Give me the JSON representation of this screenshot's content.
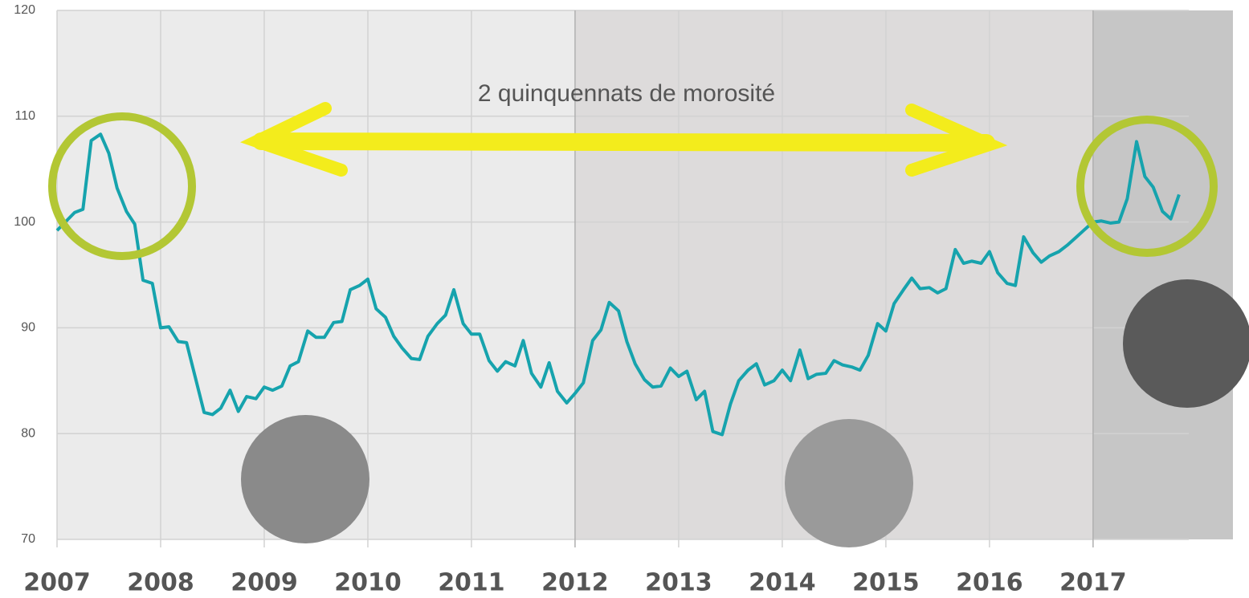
{
  "chart_data": {
    "type": "line",
    "annotation": "2 quinquennats de morosité",
    "x": [
      2007.0,
      2007.17,
      2007.25,
      2007.33,
      2007.42,
      2007.5,
      2007.58,
      2007.67,
      2007.75,
      2007.83,
      2007.92,
      2008.0,
      2008.08,
      2008.17,
      2008.25,
      2008.33,
      2008.42,
      2008.5,
      2008.58,
      2008.67,
      2008.75,
      2008.83,
      2008.92,
      2009.0,
      2009.08,
      2009.17,
      2009.25,
      2009.33,
      2009.42,
      2009.5,
      2009.58,
      2009.67,
      2009.75,
      2009.83,
      2009.92,
      2010.0,
      2010.08,
      2010.17,
      2010.25,
      2010.33,
      2010.42,
      2010.5,
      2010.58,
      2010.67,
      2010.75,
      2010.83,
      2010.92,
      2011.0,
      2011.08,
      2011.17,
      2011.25,
      2011.33,
      2011.42,
      2011.5,
      2011.58,
      2011.67,
      2011.75,
      2011.83,
      2011.92,
      2012.0,
      2012.08,
      2012.17,
      2012.25,
      2012.33,
      2012.42,
      2012.5,
      2012.58,
      2012.67,
      2012.75,
      2012.83,
      2012.92,
      2013.0,
      2013.08,
      2013.17,
      2013.25,
      2013.33,
      2013.42,
      2013.5,
      2013.58,
      2013.67,
      2013.75,
      2013.83,
      2013.92,
      2014.0,
      2014.08,
      2014.17,
      2014.25,
      2014.33,
      2014.42,
      2014.5,
      2014.58,
      2014.67,
      2014.75,
      2014.83,
      2014.92,
      2015.0,
      2015.08,
      2015.17,
      2015.25,
      2015.33,
      2015.42,
      2015.5,
      2015.58,
      2015.67,
      2015.75,
      2015.83,
      2015.92,
      2016.0,
      2016.08,
      2016.17,
      2016.25,
      2016.33,
      2016.42,
      2016.5,
      2016.58,
      2016.67,
      2016.75,
      2016.83,
      2016.92,
      2017.0,
      2017.08,
      2017.17,
      2017.25,
      2017.33,
      2017.42,
      2017.5,
      2017.58,
      2017.67,
      2017.75,
      2017.83
    ],
    "series": [
      {
        "color": "#16a3ad",
        "values": [
          99.2,
          100.9,
          101.2,
          107.7,
          108.3,
          106.5,
          103.2,
          101.0,
          99.8,
          94.5,
          94.2,
          90.0,
          90.1,
          88.7,
          88.6,
          85.5,
          82.0,
          81.8,
          82.4,
          84.1,
          82.1,
          83.5,
          83.3,
          84.4,
          84.1,
          84.5,
          86.4,
          86.8,
          89.7,
          89.1,
          89.1,
          90.5,
          90.6,
          93.6,
          94.0,
          94.6,
          91.8,
          91.0,
          89.2,
          88.1,
          87.1,
          87.0,
          89.2,
          90.4,
          91.2,
          93.6,
          90.4,
          89.4,
          89.4,
          86.9,
          85.9,
          86.8,
          86.4,
          88.8,
          85.7,
          84.4,
          86.7,
          84.0,
          82.9,
          83.8,
          84.8,
          88.8,
          89.8,
          92.4,
          91.6,
          88.7,
          86.6,
          85.1,
          84.4,
          84.5,
          86.2,
          85.4,
          85.9,
          83.2,
          84.0,
          80.2,
          79.9,
          82.8,
          85.0,
          86.0,
          86.6,
          84.6,
          85.0,
          86.0,
          85.0,
          87.9,
          85.2,
          85.6,
          85.7,
          86.9,
          86.5,
          86.3,
          86.0,
          87.4,
          90.4,
          89.7,
          92.3,
          93.6,
          94.7,
          93.7,
          93.8,
          93.3,
          93.7,
          97.4,
          96.1,
          96.3,
          96.1,
          97.2,
          95.2,
          94.2,
          94.0,
          98.6,
          97.1,
          96.2,
          96.8,
          97.2,
          97.8,
          98.5,
          99.3,
          100.0,
          100.1,
          99.9,
          100.0,
          102.2,
          107.6,
          104.3,
          103.3,
          101.0,
          100.3,
          102.6
        ]
      }
    ],
    "xlim": [
      2007,
      2018.35
    ],
    "xticks": [
      2007,
      2008,
      2009,
      2010,
      2011,
      2012,
      2013,
      2014,
      2015,
      2016,
      2017
    ],
    "ylim": [
      70,
      120
    ],
    "yticks": [
      70,
      80,
      90,
      100,
      110,
      120
    ],
    "grid": true
  }
}
